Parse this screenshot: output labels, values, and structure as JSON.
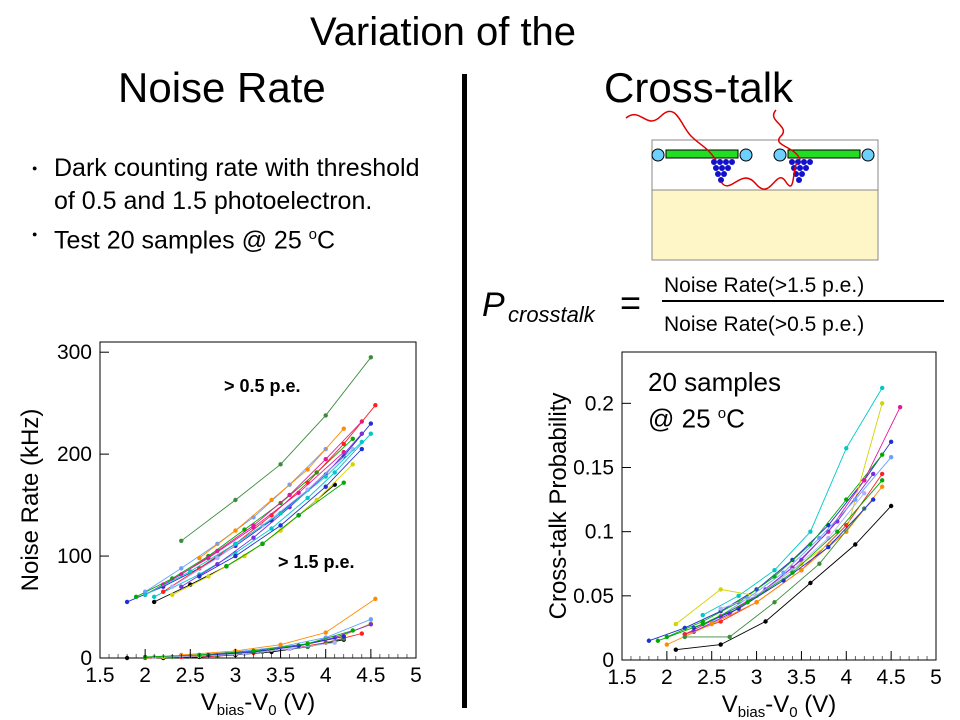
{
  "header": {
    "title": "Variation of the",
    "left_heading": "Noise Rate",
    "right_heading": "Cross-talk"
  },
  "bullets": [
    {
      "text": "Dark counting rate with threshold of 0.5 and 1.5 photoelectron."
    },
    {
      "text_before": "Test 20 samples @ 25 ",
      "sup": "o",
      "text_after": "C"
    }
  ],
  "formula": {
    "lhs": "P",
    "lhs_sub": "crosstalk",
    "eq": "=",
    "numerator": "Noise Rate(>1.5 p.e.)",
    "denominator": "Noise Rate(>0.5 p.e.)"
  },
  "samples_note": {
    "line1": "20 samples",
    "line2_before": "@ 25 ",
    "line2_sup": "o",
    "line2_after": "C"
  },
  "colors": {
    "series": [
      "#1f2fd6",
      "#00aa00",
      "#e0199b",
      "#00c8c8",
      "#000000",
      "#ff2020",
      "#d4d400",
      "#7a2ee0",
      "#6aa0ff",
      "#ff8c00",
      "#3c8c3c",
      "#b0b0ff"
    ],
    "axis": "#000000",
    "schematic_green": "#22dd22",
    "schematic_blue": "#1111cc",
    "schematic_red": "#e00000",
    "substrate": "#fff6c8"
  },
  "chart_data": [
    {
      "type": "line",
      "xlabel": "V",
      "xlabel_sub": "bias",
      "xlabel_mid": "-V",
      "xlabel_sub2": "0",
      "xlabel_end": " (V)",
      "ylabel": "Noise Rate (kHz)",
      "xlim": [
        1.5,
        5
      ],
      "ylim": [
        0,
        310
      ],
      "x_ticks": [
        "1.5",
        "2",
        "2.5",
        "3",
        "3.5",
        "4",
        "4.5",
        "5"
      ],
      "y_ticks": [
        "0",
        "100",
        "200",
        "300"
      ],
      "annotations": [
        "> 0.5 p.e.",
        "> 1.5 p.e."
      ],
      "series": [
        {
          "x": [
            1.8,
            2.2,
            2.6,
            3.0,
            3.4,
            3.8,
            4.2,
            4.5
          ],
          "y": [
            55,
            70,
            88,
            110,
            135,
            165,
            198,
            230
          ]
        },
        {
          "x": [
            1.9,
            2.3,
            2.7,
            3.1,
            3.5,
            3.9,
            4.3
          ],
          "y": [
            60,
            78,
            100,
            126,
            152,
            182,
            215
          ]
        },
        {
          "x": [
            2.0,
            2.4,
            2.8,
            3.2,
            3.6,
            4.0,
            4.4
          ],
          "y": [
            62,
            82,
            105,
            130,
            160,
            195,
            232
          ]
        },
        {
          "x": [
            2.1,
            2.6,
            3.0,
            3.4,
            3.8,
            4.1,
            4.5
          ],
          "y": [
            60,
            82,
            103,
            127,
            157,
            182,
            220
          ]
        },
        {
          "x": [
            2.1,
            2.5,
            2.9,
            3.3,
            3.7,
            4.1
          ],
          "y": [
            55,
            72,
            90,
            112,
            140,
            170
          ]
        },
        {
          "x": [
            2.2,
            2.6,
            3.0,
            3.4,
            3.8,
            4.2,
            4.55
          ],
          "y": [
            65,
            88,
            112,
            140,
            172,
            210,
            248
          ]
        },
        {
          "x": [
            2.3,
            2.7,
            3.1,
            3.5,
            3.9,
            4.3
          ],
          "y": [
            62,
            80,
            100,
            125,
            155,
            190
          ]
        },
        {
          "x": [
            2.4,
            2.8,
            3.2,
            3.6,
            4.0,
            4.4
          ],
          "y": [
            70,
            92,
            118,
            148,
            180,
            220
          ]
        },
        {
          "x": [
            2.0,
            2.4,
            2.8,
            3.2,
            3.6,
            4.0
          ],
          "y": [
            65,
            88,
            112,
            138,
            170,
            205
          ]
        },
        {
          "x": [
            2.6,
            3.0,
            3.4,
            3.8,
            4.2
          ],
          "y": [
            98,
            125,
            155,
            185,
            225
          ]
        },
        {
          "x": [
            2.4,
            3.0,
            3.5,
            4.0,
            4.5
          ],
          "y": [
            115,
            155,
            190,
            238,
            295
          ]
        },
        {
          "x": [
            2.3,
            2.8,
            3.3,
            3.8,
            4.3
          ],
          "y": [
            70,
            98,
            130,
            165,
            205
          ]
        },
        {
          "x": [
            2.6,
            3.0,
            3.5,
            4.0,
            4.4
          ],
          "y": [
            80,
            100,
            130,
            168,
            205
          ]
        },
        {
          "x": [
            2.9,
            3.3,
            3.7,
            4.2
          ],
          "y": [
            90,
            112,
            140,
            172
          ]
        },
        {
          "x": [
            2.2,
            2.7,
            3.2,
            3.7,
            4.2
          ],
          "y": [
            72,
            98,
            128,
            162,
            202
          ]
        },
        {
          "x": [
            2.0,
            2.5,
            3.0,
            3.5,
            4.0,
            4.4
          ],
          "y": [
            62,
            85,
            112,
            142,
            178,
            212
          ]
        },
        {
          "x": [
            1.8,
            2.2,
            2.6,
            3.0,
            3.4,
            3.8,
            4.2
          ],
          "y": [
            0,
            0,
            1,
            3,
            6,
            11,
            18
          ]
        },
        {
          "x": [
            2.0,
            2.4,
            2.8,
            3.2,
            3.6,
            4.0,
            4.4
          ],
          "y": [
            0,
            1,
            2,
            5,
            9,
            15,
            24
          ]
        },
        {
          "x": [
            2.2,
            2.6,
            3.0,
            3.4,
            3.8,
            4.2,
            4.5
          ],
          "y": [
            1,
            2,
            4,
            8,
            14,
            22,
            34
          ]
        },
        {
          "x": [
            2.5,
            2.9,
            3.3,
            3.7,
            4.1,
            4.5
          ],
          "y": [
            2,
            4,
            7,
            12,
            20,
            33
          ]
        },
        {
          "x": [
            2.6,
            3.0,
            3.5,
            4.0,
            4.5
          ],
          "y": [
            3,
            6,
            11,
            20,
            38
          ]
        },
        {
          "x": [
            2.4,
            3.0,
            3.5,
            4.0,
            4.55
          ],
          "y": [
            3,
            7,
            13,
            25,
            58
          ]
        },
        {
          "x": [
            2.3,
            2.8,
            3.3,
            3.8,
            4.2
          ],
          "y": [
            1,
            3,
            6,
            11,
            19
          ]
        },
        {
          "x": [
            2.1,
            2.6,
            3.1,
            3.6,
            4.1
          ],
          "y": [
            1,
            2,
            4,
            9,
            15
          ]
        },
        {
          "x": [
            2.7,
            3.2,
            3.7,
            4.2
          ],
          "y": [
            3,
            6,
            12,
            21
          ]
        },
        {
          "x": [
            2.0,
            2.6,
            3.2,
            3.8,
            4.3
          ],
          "y": [
            1,
            3,
            7,
            14,
            27
          ]
        }
      ]
    },
    {
      "type": "line",
      "xlabel": "V",
      "xlabel_sub": "bias",
      "xlabel_mid": "-V",
      "xlabel_sub2": "0",
      "xlabel_end": " (V)",
      "ylabel": "Cross-talk Probability",
      "xlim": [
        1.5,
        5
      ],
      "ylim": [
        0,
        0.24
      ],
      "x_ticks": [
        "1.5",
        "2",
        "2.5",
        "3",
        "3.5",
        "4",
        "4.5",
        "5"
      ],
      "y_ticks": [
        "0",
        "0.05",
        "0.1",
        "0.15",
        "0.2"
      ],
      "series": [
        {
          "x": [
            1.8,
            2.2,
            2.6,
            3.0,
            3.4,
            3.8,
            4.2,
            4.5
          ],
          "y": [
            0.015,
            0.025,
            0.038,
            0.055,
            0.078,
            0.105,
            0.14,
            0.17
          ]
        },
        {
          "x": [
            2.0,
            2.4,
            2.8,
            3.2,
            3.6,
            4.0,
            4.4
          ],
          "y": [
            0.018,
            0.03,
            0.045,
            0.065,
            0.09,
            0.125,
            0.16
          ]
        },
        {
          "x": [
            2.2,
            2.6,
            3.0,
            3.4,
            3.8,
            4.2,
            4.6
          ],
          "y": [
            0.02,
            0.034,
            0.05,
            0.072,
            0.1,
            0.14,
            0.197
          ]
        },
        {
          "x": [
            2.4,
            2.8,
            3.2,
            3.6,
            4.0,
            4.4
          ],
          "y": [
            0.035,
            0.05,
            0.07,
            0.1,
            0.165,
            0.212
          ]
        },
        {
          "x": [
            2.1,
            2.6,
            3.1,
            3.6,
            4.1,
            4.5
          ],
          "y": [
            0.008,
            0.012,
            0.03,
            0.06,
            0.09,
            0.12
          ]
        },
        {
          "x": [
            2.2,
            2.6,
            3.0,
            3.5,
            4.0,
            4.4
          ],
          "y": [
            0.02,
            0.03,
            0.045,
            0.07,
            0.105,
            0.145
          ]
        },
        {
          "x": [
            2.1,
            2.6,
            3.0,
            3.5,
            4.0,
            4.4
          ],
          "y": [
            0.028,
            0.055,
            0.05,
            0.075,
            0.1,
            0.2
          ]
        },
        {
          "x": [
            2.3,
            2.7,
            3.1,
            3.5,
            3.9,
            4.3
          ],
          "y": [
            0.022,
            0.036,
            0.055,
            0.078,
            0.108,
            0.145
          ]
        },
        {
          "x": [
            2.5,
            2.9,
            3.3,
            3.7,
            4.1,
            4.5
          ],
          "y": [
            0.03,
            0.048,
            0.068,
            0.095,
            0.125,
            0.158
          ]
        },
        {
          "x": [
            2.0,
            2.5,
            3.0,
            3.5,
            4.0,
            4.4
          ],
          "y": [
            0.012,
            0.028,
            0.045,
            0.07,
            0.1,
            0.135
          ]
        },
        {
          "x": [
            2.2,
            2.7,
            3.2,
            3.7,
            4.2
          ],
          "y": [
            0.018,
            0.018,
            0.045,
            0.075,
            0.118
          ]
        },
        {
          "x": [
            2.6,
            3.0,
            3.4,
            3.8,
            4.2
          ],
          "y": [
            0.04,
            0.05,
            0.07,
            0.095,
            0.13
          ]
        },
        {
          "x": [
            2.3,
            2.8,
            3.3,
            3.8,
            4.3
          ],
          "y": [
            0.025,
            0.04,
            0.062,
            0.088,
            0.125
          ]
        },
        {
          "x": [
            1.9,
            2.4,
            2.9,
            3.4,
            3.9,
            4.4
          ],
          "y": [
            0.015,
            0.028,
            0.045,
            0.068,
            0.1,
            0.14
          ]
        }
      ]
    }
  ]
}
